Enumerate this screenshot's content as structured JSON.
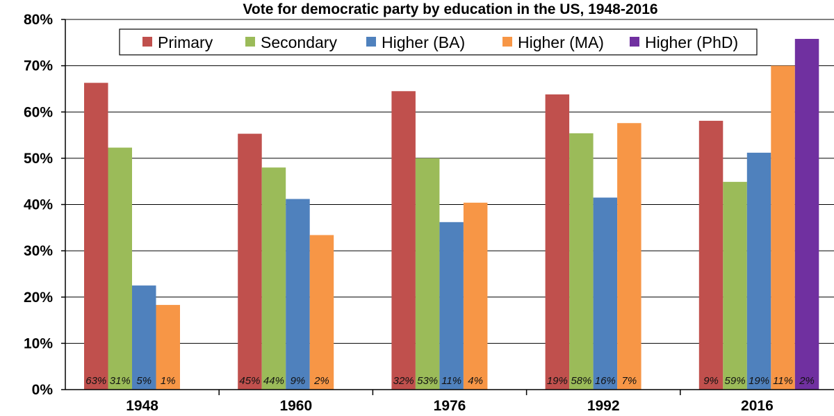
{
  "chart_data": {
    "type": "bar",
    "title": "Vote for democratic party by education in the US, 1948-2016",
    "categories": [
      "1948",
      "1960",
      "1976",
      "1992",
      "2016"
    ],
    "ylim": [
      0,
      80
    ],
    "yticks": [
      "0%",
      "10%",
      "20%",
      "30%",
      "40%",
      "50%",
      "60%",
      "70%",
      "80%"
    ],
    "xlabel": "",
    "ylabel": "",
    "legend_position": "top",
    "series": [
      {
        "name": "Primary",
        "color": "#C0504D",
        "values": [
          66.3,
          55.3,
          64.5,
          63.8,
          58.1
        ],
        "labels": [
          "63%",
          "45%",
          "32%",
          "19%",
          "9%"
        ]
      },
      {
        "name": "Secondary",
        "color": "#9BBB59",
        "values": [
          52.3,
          48.0,
          50.0,
          55.4,
          44.9
        ],
        "labels": [
          "31%",
          "44%",
          "53%",
          "58%",
          "59%"
        ]
      },
      {
        "name": "Higher (BA)",
        "color": "#4F81BD",
        "values": [
          22.5,
          41.2,
          36.2,
          41.5,
          51.2
        ],
        "labels": [
          "5%",
          "9%",
          "11%",
          "16%",
          "19%"
        ]
      },
      {
        "name": "Higher (MA)",
        "color": "#F79646",
        "values": [
          18.3,
          33.4,
          40.4,
          57.6,
          70.0
        ],
        "labels": [
          "1%",
          "2%",
          "4%",
          "7%",
          "11%"
        ]
      },
      {
        "name": "Higher (PhD)",
        "color": "#7030A0",
        "values": [
          null,
          null,
          null,
          null,
          75.8
        ],
        "labels": [
          null,
          null,
          null,
          null,
          "2%"
        ]
      }
    ]
  }
}
